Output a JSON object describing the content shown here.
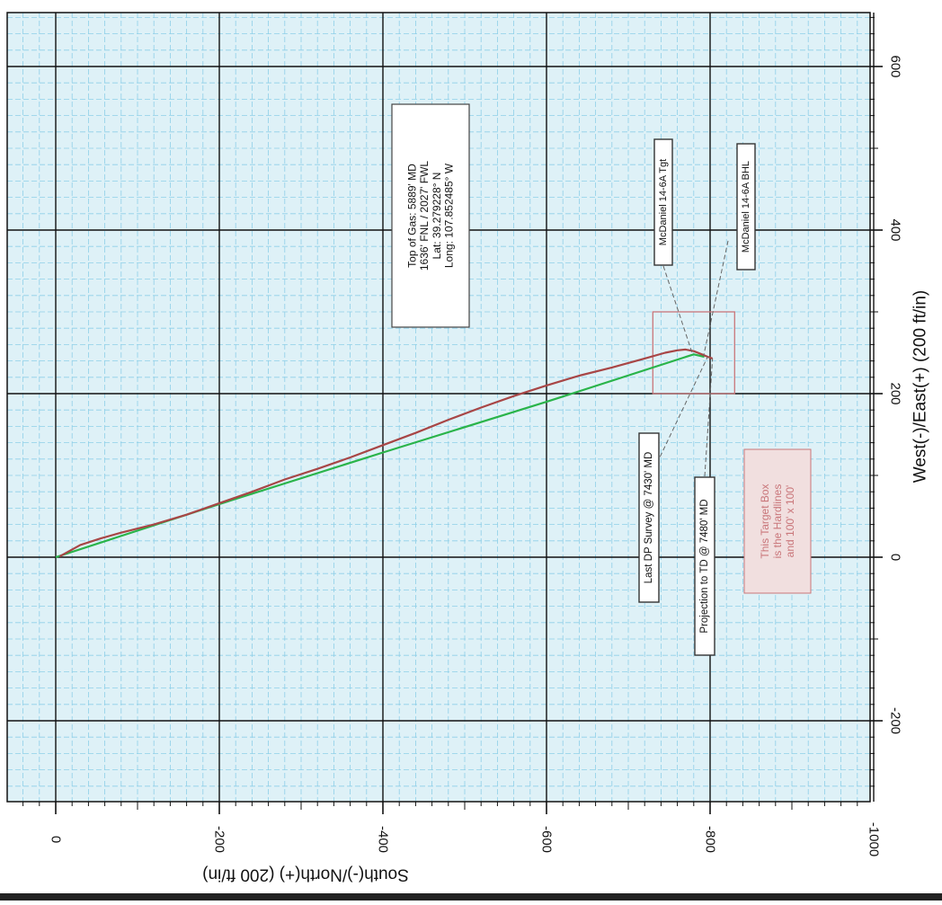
{
  "chart_data": {
    "type": "line",
    "rotated": "90deg-clockwise",
    "xlabel": "South(-)/North(+) (200 ft/in)",
    "ylabel": "West(-)/East(+) (200 ft/in)",
    "xlim": [
      40,
      -1000
    ],
    "ylim": [
      -295,
      665
    ],
    "x_ticks": [
      0,
      -200,
      -400,
      -600,
      -800,
      -1000
    ],
    "y_ticks": [
      -200,
      0,
      200,
      400,
      600
    ],
    "grid": true,
    "colors": {
      "background": "#def1f7",
      "minor_grid": "#8ecfe8",
      "major_grid": "#111111",
      "plan": "#2ab44a",
      "actual": "#a84646",
      "target": "#c9767a",
      "leader": "#666666"
    },
    "series": [
      {
        "points": [
          [
            0,
            0
          ],
          [
            -200,
            65
          ],
          [
            -400,
            128
          ],
          [
            -600,
            190
          ],
          [
            -780,
            248
          ],
          [
            -793,
            245
          ]
        ]
      },
      {
        "points": [
          [
            -5,
            1
          ],
          [
            -30,
            15
          ],
          [
            -55,
            23
          ],
          [
            -80,
            30
          ],
          [
            -120,
            40
          ],
          [
            -160,
            52
          ],
          [
            -200,
            66
          ],
          [
            -240,
            80
          ],
          [
            -280,
            95
          ],
          [
            -320,
            108
          ],
          [
            -360,
            122
          ],
          [
            -400,
            137
          ],
          [
            -440,
            152
          ],
          [
            -480,
            168
          ],
          [
            -520,
            183
          ],
          [
            -560,
            197
          ],
          [
            -600,
            210
          ],
          [
            -640,
            222
          ],
          [
            -680,
            232
          ],
          [
            -720,
            243
          ],
          [
            -745,
            250
          ],
          [
            -760,
            253
          ],
          [
            -770,
            254
          ],
          [
            -780,
            252
          ],
          [
            -790,
            248
          ],
          [
            -797,
            245
          ],
          [
            -803,
            243
          ]
        ]
      }
    ],
    "target_box": {
      "x": [
        -730,
        -830
      ],
      "y": [
        200,
        300
      ]
    },
    "annotations": [
      {
        "name": "top-of-gas",
        "lines": [
          "Top of Gas: 5889' MD",
          "1636' FNL / 2027' FWL",
          "Lat: 39.279228° N",
          "Long: 107.852485° W"
        ]
      },
      {
        "name": "tgt",
        "lines": [
          "McDaniel 14-6A Tgt"
        ],
        "point": [
          -778,
          250
        ]
      },
      {
        "name": "bhl",
        "lines": [
          "McDaniel 14-6A BHL"
        ],
        "point": [
          -792,
          246
        ]
      },
      {
        "name": "last-dp",
        "lines": [
          "Last DP Survey @ 7430' MD"
        ],
        "point": [
          -797,
          245
        ]
      },
      {
        "name": "projection",
        "lines": [
          "Projection to TD @ 7480' MD"
        ],
        "point": [
          -803,
          243
        ]
      },
      {
        "name": "target-note",
        "lines": [
          "This Target Box",
          "is the Hardlines",
          "and 100' x 100'"
        ]
      }
    ]
  }
}
